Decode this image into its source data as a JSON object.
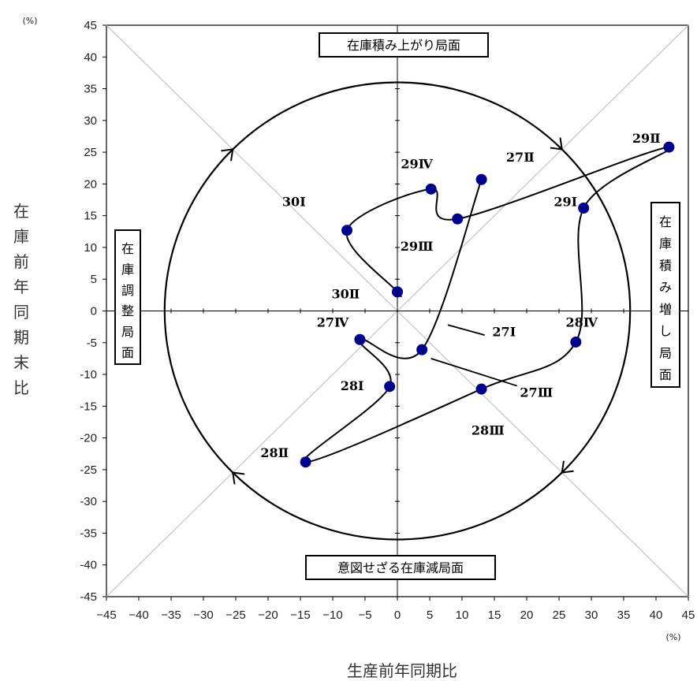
{
  "chart_data": {
    "type": "scatter",
    "title": "",
    "xlabel": "生産前年同期比",
    "ylabel": "在庫前年同期末比",
    "x_unit": "(%)",
    "y_unit": "(%)",
    "xlim": [
      -45,
      45
    ],
    "ylim": [
      -45,
      45
    ],
    "x_ticks": [
      -45,
      -40,
      -35,
      -30,
      -25,
      -20,
      -15,
      -10,
      -5,
      0,
      5,
      10,
      15,
      20,
      25,
      30,
      35,
      40,
      45
    ],
    "y_ticks": [
      45,
      40,
      35,
      30,
      25,
      20,
      15,
      10,
      5,
      0,
      -5,
      -10,
      -15,
      -20,
      -25,
      -30,
      -35,
      -40,
      -45
    ],
    "grid": false,
    "reference_circle_radius": 36,
    "points": [
      {
        "label": "27Ⅰ",
        "x": 13.0,
        "y": 20.7
      },
      {
        "label": "27Ⅱ",
        "x": 3.8,
        "y": -6.1
      },
      {
        "label": "27Ⅲ",
        "x": -5.8,
        "y": -4.5
      },
      {
        "label": "27Ⅳ",
        "x": -1.2,
        "y": -11.9
      },
      {
        "label": "28Ⅰ",
        "x": -14.2,
        "y": -23.8
      },
      {
        "label": "28Ⅱ",
        "x": 13.0,
        "y": -12.3
      },
      {
        "label": "28Ⅲ",
        "x": 27.6,
        "y": -4.9
      },
      {
        "label": "28Ⅳ",
        "x": 28.8,
        "y": 16.2
      },
      {
        "label": "29Ⅰ",
        "x": 42.0,
        "y": 25.8
      },
      {
        "label": "29Ⅱ",
        "x": 9.3,
        "y": 14.5
      },
      {
        "label": "29Ⅲ",
        "x": 5.2,
        "y": 19.2
      },
      {
        "label": "29Ⅳ",
        "x": -7.8,
        "y": 12.7
      },
      {
        "label": "30Ⅰ",
        "x": 0.0,
        "y": 3.0
      },
      {
        "label": "30Ⅱ",
        "x": 0.0,
        "y": 3.0
      }
    ],
    "phases": {
      "top": "在庫積み上がり局面",
      "right": "在庫積み増し局面",
      "bottom": "意図せざる在庫減局面",
      "left": "在庫調整局面"
    },
    "point_labels": [
      {
        "text": "27Ⅱ",
        "lx": 19,
        "ly": 23.5
      },
      {
        "text": "29Ⅳ",
        "lx": 3,
        "ly": 22.5
      },
      {
        "text": "30Ⅰ",
        "lx": -16,
        "ly": 16.5
      },
      {
        "text": "29Ⅲ",
        "lx": 3,
        "ly": 9.5
      },
      {
        "text": "30Ⅱ",
        "lx": -8,
        "ly": 2
      },
      {
        "text": "27Ⅳ",
        "lx": -10,
        "ly": -2.5
      },
      {
        "text": "28Ⅰ",
        "lx": -7,
        "ly": -12.5
      },
      {
        "text": "28Ⅱ",
        "lx": -19,
        "ly": -23
      },
      {
        "text": "28Ⅲ",
        "lx": 14,
        "ly": -19.5
      },
      {
        "text": "28Ⅳ",
        "lx": 28.5,
        "ly": -2.5
      },
      {
        "text": "29Ⅰ",
        "lx": 26,
        "ly": 16.5
      },
      {
        "text": "29Ⅱ",
        "lx": 38.5,
        "ly": 26.5
      },
      {
        "text": "27Ⅰ",
        "lx": 16.5,
        "ly": -4
      },
      {
        "text": "27Ⅲ",
        "lx": 21.5,
        "ly": -13.5
      }
    ]
  }
}
